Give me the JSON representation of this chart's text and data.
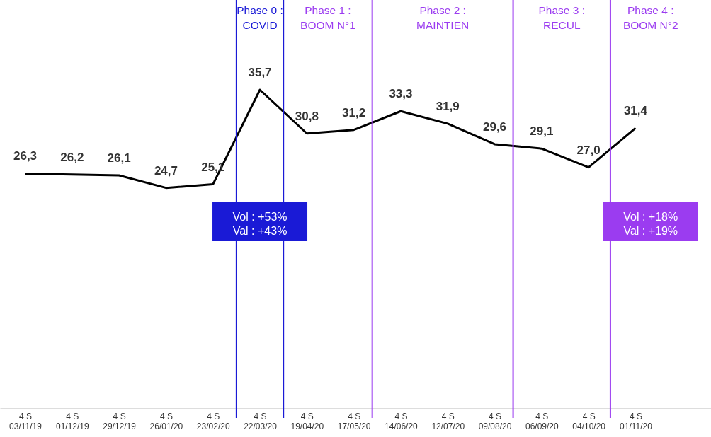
{
  "chart_data": {
    "type": "line",
    "x": [
      "2019-11-03",
      "2019-12-01",
      "2019-12-29",
      "2020-01-26",
      "2020-02-23",
      "2020-03-22",
      "2020-04-19",
      "2020-05-17",
      "2020-06-14",
      "2020-07-12",
      "2020-08-09",
      "2020-09-06",
      "2020-10-04",
      "2020-11-01"
    ],
    "xlim": [
      "2019-10-19",
      "2020-12-16"
    ],
    "xticks": [
      {
        "value": "2019-11-03",
        "label": "4 S\n03/11/19"
      },
      {
        "value": "2019-12-01",
        "label": "4 S\n01/12/19"
      },
      {
        "value": "2019-12-29",
        "label": "4 S\n29/12/19"
      },
      {
        "value": "2020-01-26",
        "label": "4 S\n26/01/20"
      },
      {
        "value": "2020-02-23",
        "label": "4 S\n23/02/20"
      },
      {
        "value": "2020-03-22",
        "label": "4 S\n22/03/20"
      },
      {
        "value": "2020-04-19",
        "label": "4 S\n19/04/20"
      },
      {
        "value": "2020-05-17",
        "label": "4 S\n17/05/20"
      },
      {
        "value": "2020-06-14",
        "label": "4 S\n14/06/20"
      },
      {
        "value": "2020-07-12",
        "label": "4 S\n12/07/20"
      },
      {
        "value": "2020-08-09",
        "label": "4 S\n09/08/20"
      },
      {
        "value": "2020-09-06",
        "label": "4 S\n06/09/20"
      },
      {
        "value": "2020-10-04",
        "label": "4 S\n04/10/20"
      },
      {
        "value": "2020-11-01",
        "label": "4 S\n01/11/20"
      }
    ],
    "series": [
      {
        "color": "#000000",
        "values": [
          26.3,
          26.2,
          26.1,
          24.7,
          25.1,
          35.7,
          30.8,
          31.2,
          33.3,
          31.9,
          29.6,
          29.1,
          27.0,
          31.4
        ],
        "value_labels": [
          "26,3",
          "26,2",
          "26,1",
          "24,7",
          "25,1",
          "35,7",
          "30,8",
          "31,2",
          "33,3",
          "31,9",
          "29,6",
          "29,1",
          "27,0",
          "31,4"
        ]
      }
    ],
    "tick_labels": "x",
    "grid": false,
    "legend": false,
    "ref_lines": [
      {
        "axis": "x",
        "value": "2020-03-08",
        "label": "Phase 0 :\nCOVID",
        "color": "#1a1ad6"
      },
      {
        "axis": "x",
        "value": "2020-04-05",
        "label": "Phase 1 :\nBOOM N°1",
        "color": "#1a1ad6"
      },
      {
        "axis": "x",
        "value": "2020-05-28",
        "label": "Phase 2 :\nMAINTIEN",
        "color": "#9b3cf0"
      },
      {
        "axis": "x",
        "value": "2020-08-20",
        "label": "Phase 3 :\nRECUL",
        "color": "#9b3cf0"
      },
      {
        "axis": "x",
        "value": "2020-10-17",
        "label": "Phase 4 :\nBOOM N°2",
        "color": "#9b3cf0"
      }
    ],
    "annotations": [
      "Vol : +53%\nVal : +43%",
      "Vol : +18%\nVal : +19%"
    ]
  }
}
